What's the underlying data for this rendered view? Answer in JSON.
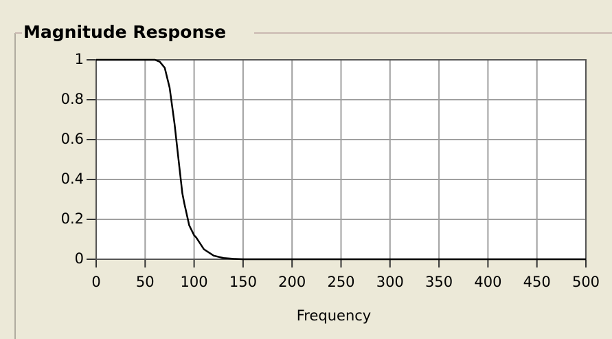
{
  "chart_data": {
    "type": "line",
    "title": "Magnitude Response",
    "x_label": "Frequency",
    "x": [
      0,
      50,
      60,
      65,
      70,
      75,
      80,
      85,
      88,
      90,
      95,
      100,
      102,
      110,
      120,
      130,
      140,
      150,
      200,
      300,
      400,
      500
    ],
    "series": [
      {
        "color": "#000000",
        "values": [
          1,
          1,
          1,
          0.99,
          0.96,
          0.86,
          0.68,
          0.46,
          0.33,
          0.28,
          0.17,
          0.12,
          0.11,
          0.05,
          0.018,
          0.006,
          0.002,
          0,
          0,
          0,
          0,
          0
        ]
      }
    ],
    "xlim": [
      0,
      500
    ],
    "xticks": [
      0,
      50,
      100,
      150,
      200,
      250,
      300,
      350,
      400,
      450,
      500
    ],
    "ylim": [
      0,
      1
    ],
    "yticks": [
      0,
      0.2,
      0.4,
      0.6,
      0.8,
      1
    ],
    "grid": true
  }
}
